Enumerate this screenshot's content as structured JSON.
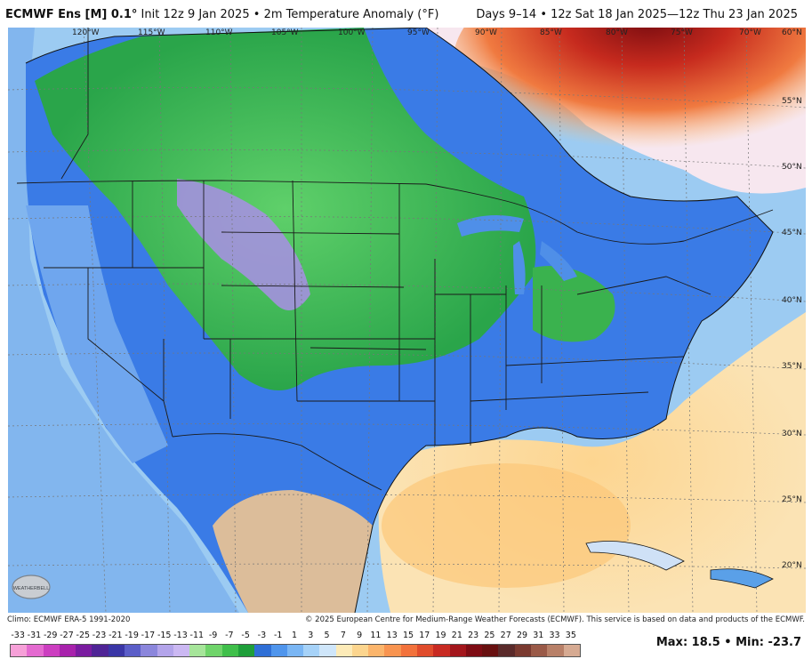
{
  "header": {
    "model": "ECMWF Ens [M] 0.1°",
    "init": "Init 12z 9 Jan 2025",
    "variable": "2m Temperature Anomaly (°F)",
    "valid": "Days 9–14 • 12z Sat 18 Jan 2025—12z Thu 23 Jan 2025"
  },
  "map": {
    "longitude_labels": [
      "120°W",
      "115°W",
      "110°W",
      "105°W",
      "100°W",
      "95°W",
      "90°W",
      "85°W",
      "80°W",
      "75°W",
      "70°W",
      "60°N"
    ],
    "latitude_labels": [
      "55°N",
      "50°N",
      "45°N",
      "40°N",
      "35°N",
      "30°N",
      "25°N",
      "20°N"
    ],
    "logo_text": "WEATHERBELL"
  },
  "footer": {
    "climo": "Climo: ECMWF ERA-5 1991-2020",
    "copyright": "© 2025 European Centre for Medium-Range Weather Forecasts (ECMWF). This service is based on data and products of the ECMWF.",
    "max_label": "Max:",
    "max_value": "18.5",
    "min_label": "Min:",
    "min_value": "-23.7",
    "scale_values": [
      "-33",
      "-31",
      "-29",
      "-27",
      "-25",
      "-23",
      "-21",
      "-19",
      "-17",
      "-15",
      "-13",
      "-11",
      "-9",
      "-7",
      "-5",
      "-3",
      "-1",
      "1",
      "3",
      "5",
      "7",
      "9",
      "11",
      "13",
      "15",
      "17",
      "19",
      "21",
      "23",
      "25",
      "27",
      "29",
      "31",
      "33",
      "35"
    ],
    "scale_colors": [
      "#f6a0d8",
      "#e46ad0",
      "#cc3ec0",
      "#a822ac",
      "#7a1ca0",
      "#4f2496",
      "#3a36a6",
      "#5b5ec8",
      "#8b86dc",
      "#b3a4ea",
      "#cbb8f2",
      "#a6e59a",
      "#6fd46a",
      "#3fbf4a",
      "#1f9f3a",
      "#2f6fd6",
      "#4f95ec",
      "#7ab6f4",
      "#a6d2f8",
      "#cfe6fa",
      "#fdebb8",
      "#fcd58e",
      "#fbb56c",
      "#f89450",
      "#f2723c",
      "#e04c2c",
      "#c82a22",
      "#a3161c",
      "#7e0c14",
      "#681010",
      "#5a2a2a",
      "#7a3a30",
      "#9a5a48",
      "#b88068",
      "#d6aa92"
    ]
  }
}
